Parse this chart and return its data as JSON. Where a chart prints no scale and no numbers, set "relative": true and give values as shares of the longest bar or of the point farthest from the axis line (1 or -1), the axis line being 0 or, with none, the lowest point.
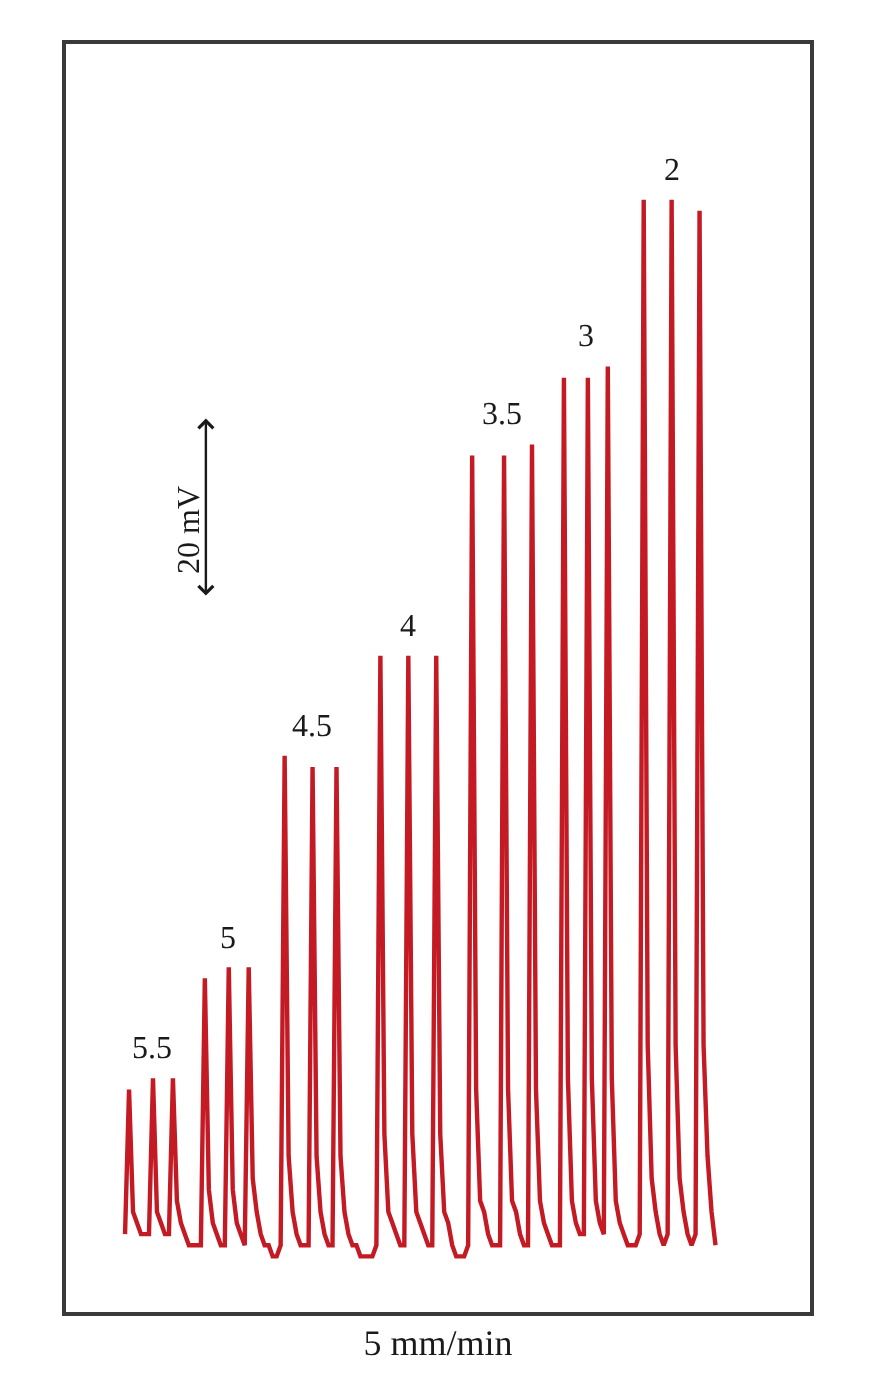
{
  "chart_data": {
    "type": "line",
    "relative": true,
    "xlabel": "5 mm/min",
    "categories": [
      null,
      null,
      null,
      null,
      null,
      null,
      null,
      null,
      null,
      null,
      null,
      null,
      null,
      null,
      null,
      null,
      null,
      null,
      null,
      null,
      null,
      null,
      null,
      null,
      null,
      null,
      null,
      null,
      null,
      null,
      null,
      null,
      null,
      null,
      null,
      null,
      null,
      null,
      null,
      null,
      null,
      null,
      null,
      null,
      null,
      null,
      null,
      null,
      null,
      null,
      null,
      null,
      null,
      null,
      null,
      null,
      null,
      null,
      null,
      null,
      null,
      null,
      null,
      null,
      null,
      null,
      null,
      null,
      null,
      null,
      null,
      null,
      null,
      null,
      null,
      null,
      null,
      null,
      null,
      null,
      null,
      null,
      null,
      null,
      null,
      null,
      null,
      null,
      null,
      null,
      null,
      null,
      null,
      null,
      null,
      null,
      null,
      null,
      null,
      null,
      null,
      null,
      null,
      null,
      null,
      null,
      null,
      null,
      null,
      null,
      null,
      null,
      null,
      null,
      null,
      null,
      null,
      null,
      null,
      null,
      null,
      null,
      null,
      null,
      null,
      null,
      null,
      null,
      null,
      null,
      null,
      null,
      null,
      null,
      null,
      null,
      null,
      null,
      null,
      null,
      null,
      null,
      null,
      null,
      null,
      null,
      null,
      null,
      null
    ],
    "series": [
      {
        "color": "#c41a24",
        "values": [
          0.07,
          0.2,
          0.09,
          0.08,
          0.07,
          0.07,
          0.07,
          0.21,
          0.09,
          0.08,
          0.07,
          0.07,
          0.21,
          0.1,
          0.08,
          0.07,
          0.06,
          0.06,
          0.06,
          0.06,
          0.3,
          0.11,
          0.08,
          0.07,
          0.06,
          0.06,
          0.31,
          0.11,
          0.08,
          0.07,
          0.06,
          0.31,
          0.12,
          0.09,
          0.07,
          0.06,
          0.06,
          0.05,
          0.05,
          0.06,
          0.5,
          0.14,
          0.09,
          0.07,
          0.06,
          0.06,
          0.06,
          0.49,
          0.14,
          0.09,
          0.07,
          0.06,
          0.06,
          0.49,
          0.14,
          0.09,
          0.07,
          0.06,
          0.06,
          0.05,
          0.05,
          0.05,
          0.05,
          0.06,
          0.59,
          0.16,
          0.09,
          0.08,
          0.07,
          0.06,
          0.06,
          0.59,
          0.16,
          0.09,
          0.08,
          0.07,
          0.06,
          0.06,
          0.59,
          0.16,
          0.09,
          0.08,
          0.06,
          0.05,
          0.05,
          0.05,
          0.06,
          0.77,
          0.2,
          0.1,
          0.09,
          0.07,
          0.06,
          0.06,
          0.06,
          0.77,
          0.2,
          0.1,
          0.09,
          0.07,
          0.06,
          0.06,
          0.78,
          0.2,
          0.1,
          0.08,
          0.07,
          0.06,
          0.06,
          0.06,
          0.84,
          0.21,
          0.1,
          0.08,
          0.07,
          0.07,
          0.84,
          0.21,
          0.1,
          0.08,
          0.07,
          0.85,
          0.21,
          0.1,
          0.08,
          0.07,
          0.06,
          0.06,
          0.06,
          0.07,
          1,
          0.24,
          0.12,
          0.09,
          0.07,
          0.06,
          0.07,
          1,
          0.24,
          0.12,
          0.09,
          0.07,
          0.06,
          0.07,
          0.99,
          0.24,
          0.14,
          0.09,
          0.06
        ]
      }
    ],
    "annotations": [
      "20 mV",
      {
        "text": "5.5",
        "y": 0.21
      },
      {
        "text": "5",
        "y": 0.31
      },
      {
        "text": "4.5",
        "y": 0.5
      },
      {
        "text": "4",
        "y": 0.59
      },
      {
        "text": "3.5",
        "y": 0.78
      },
      {
        "text": "3",
        "y": 0.85
      },
      {
        "text": "2",
        "y": 1
      }
    ]
  }
}
